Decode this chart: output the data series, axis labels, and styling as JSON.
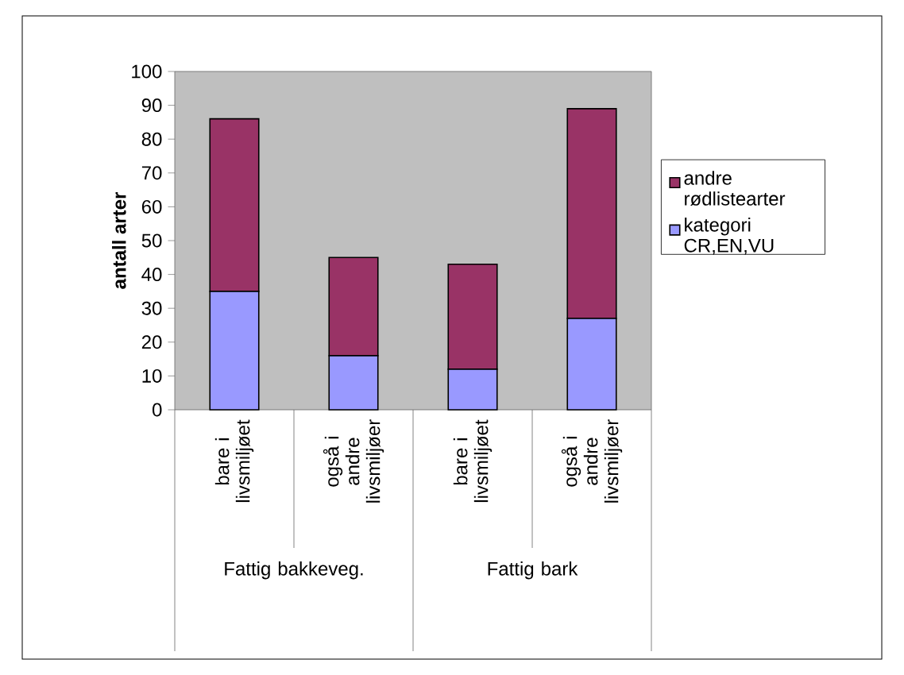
{
  "chart_data": {
    "type": "bar",
    "stacked": true,
    "ylabel": "antall arter",
    "categories": [
      "bare i livsmiljøet",
      "også i andre livsmiljøer",
      "bare i livsmiljøet",
      "også i andre livsmiljøer"
    ],
    "annotations": [
      "Fattig bakkeveg.",
      "Fattig bark"
    ],
    "series": [
      {
        "name": "kategori CR,EN,VU",
        "color": "#9999ff",
        "values": [
          35,
          16,
          12,
          27
        ]
      },
      {
        "name": "andre rødlistearter",
        "color": "#993366",
        "values": [
          51,
          29,
          31,
          62
        ]
      }
    ],
    "ylim": [
      0,
      100
    ],
    "yticks": [
      0,
      10,
      20,
      30,
      40,
      50,
      60,
      70,
      80,
      90,
      100
    ],
    "grid": false,
    "legend": "right"
  }
}
